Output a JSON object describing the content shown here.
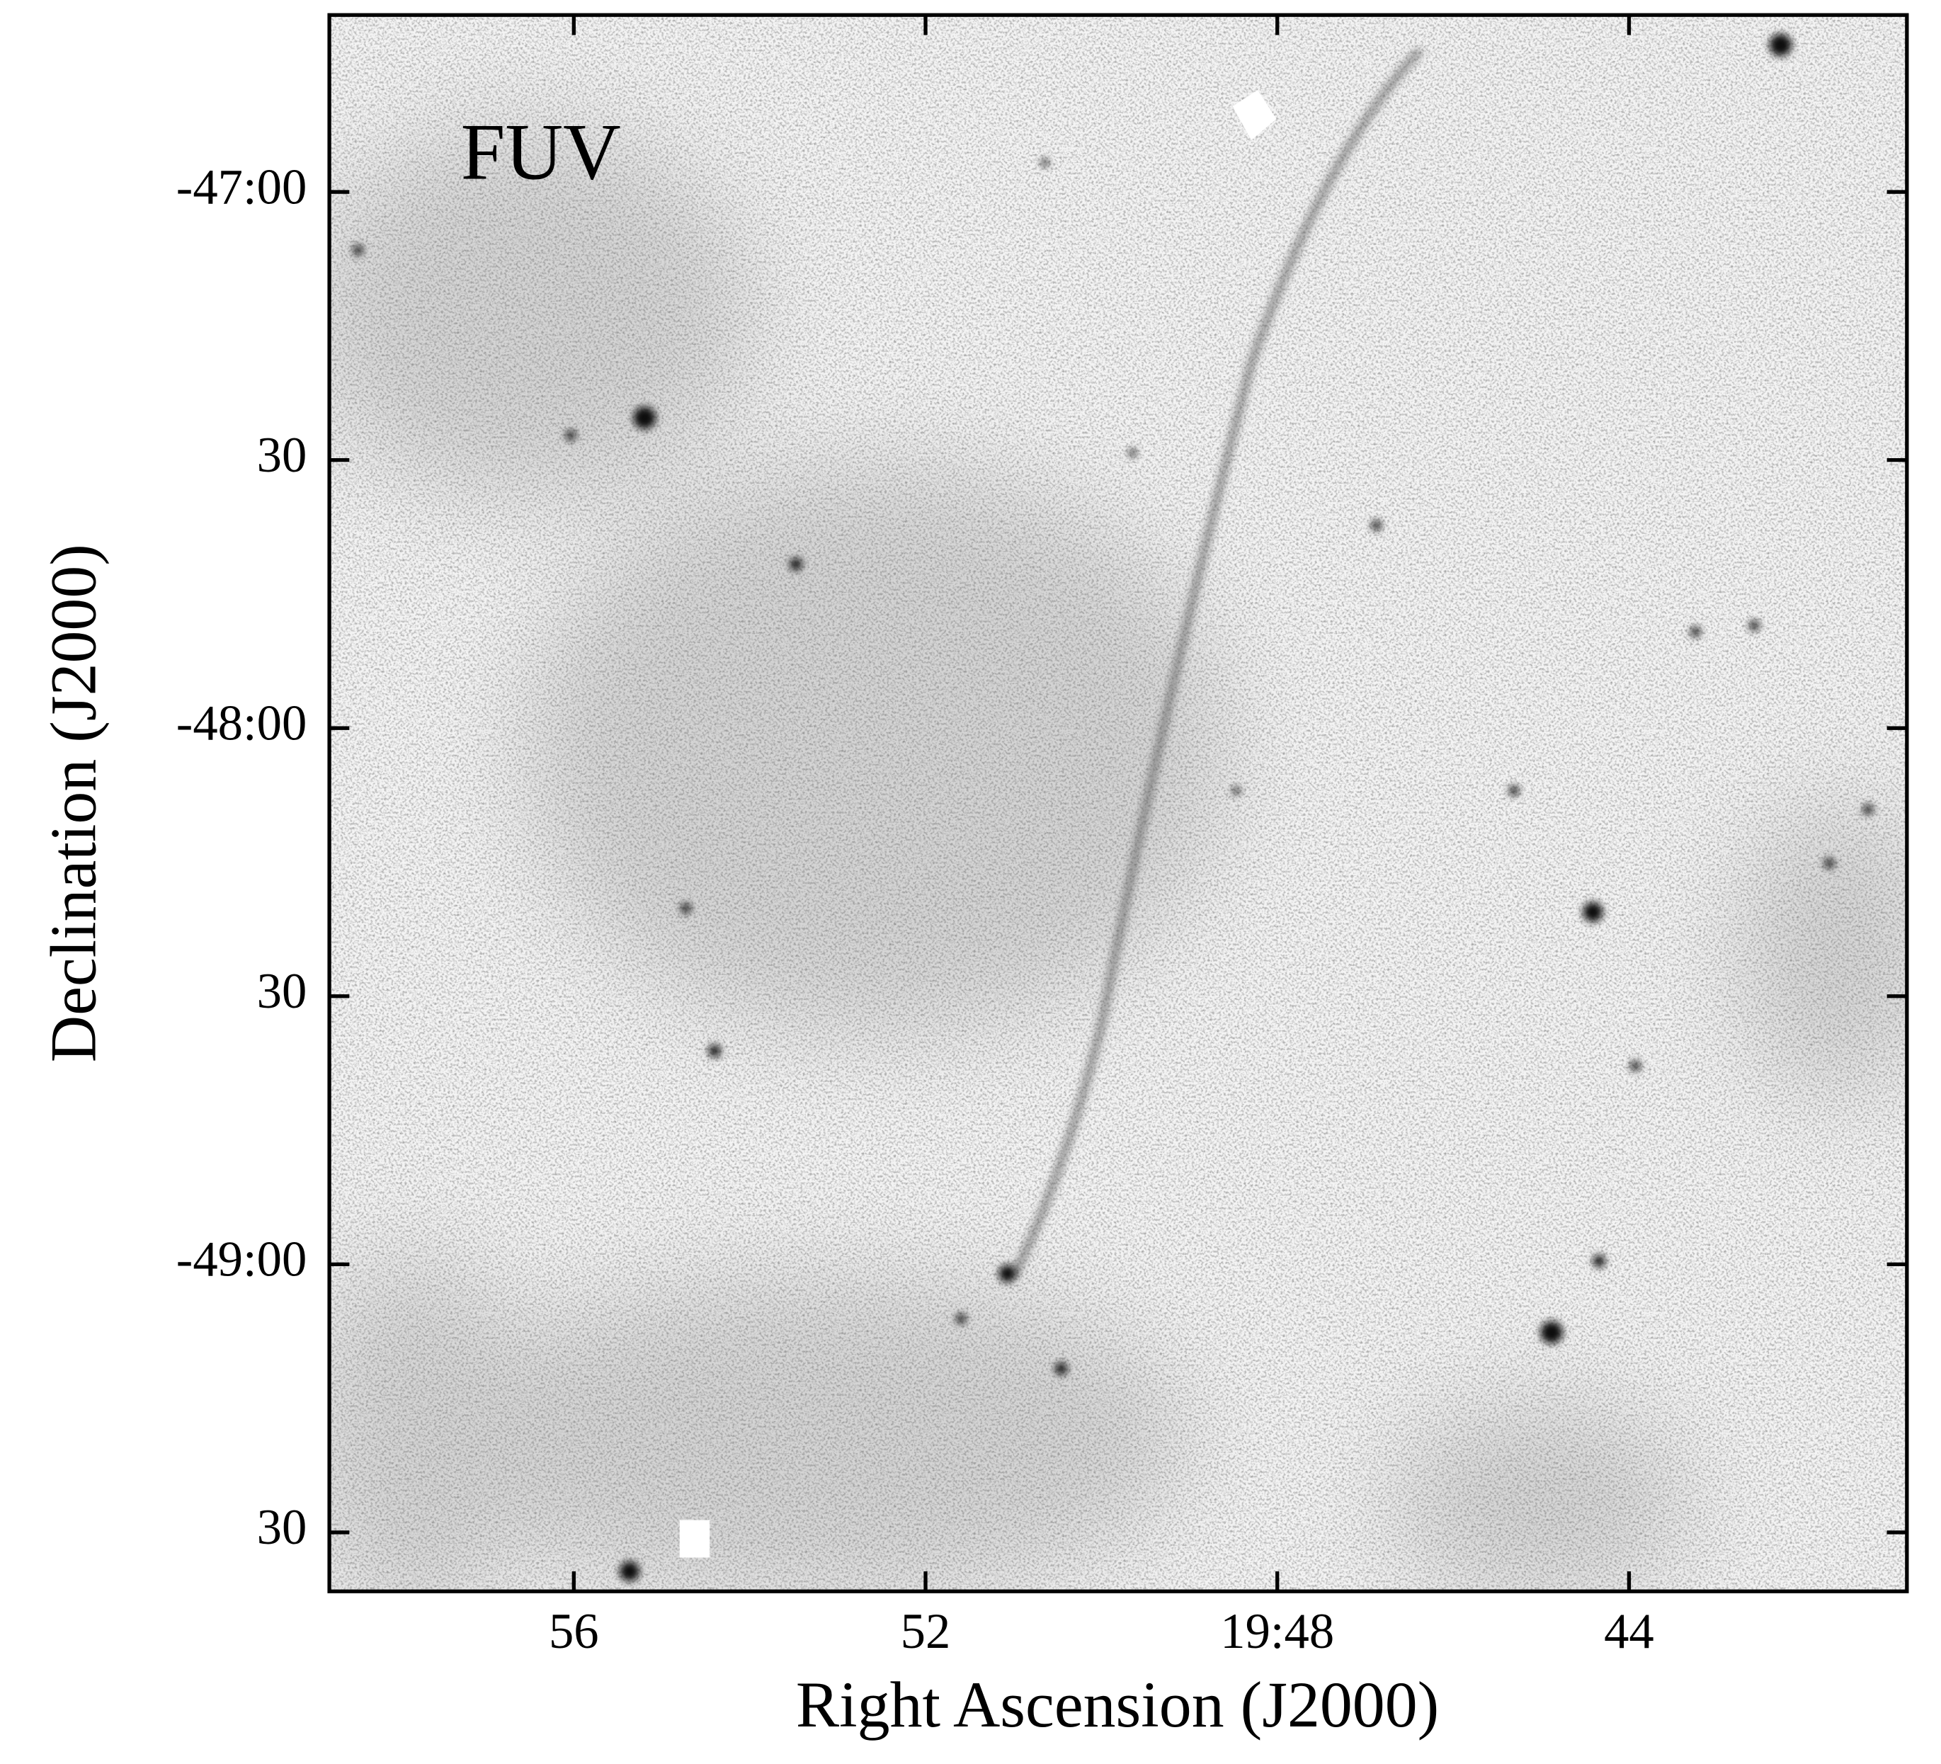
{
  "chart_data": {
    "type": "image",
    "annotation": "FUV",
    "x_label": "Right Ascension (J2000)",
    "y_label": "Declination (J2000)",
    "xlim": [
      58.78,
      40.84
    ],
    "xticks": [
      56,
      52,
      {
        "value": 48,
        "label": "19:48"
      },
      44
    ],
    "ylim": [
      -49.61,
      -46.67
    ],
    "yticks": [
      {
        "value": -47,
        "label": "-47:00"
      },
      {
        "value": -47.5,
        "label": "30"
      },
      {
        "value": -48,
        "label": "-48:00"
      },
      {
        "value": -48.5,
        "label": "30"
      },
      {
        "value": -49,
        "label": "-49:00"
      },
      {
        "value": -49.5,
        "label": "30"
      }
    ]
  }
}
